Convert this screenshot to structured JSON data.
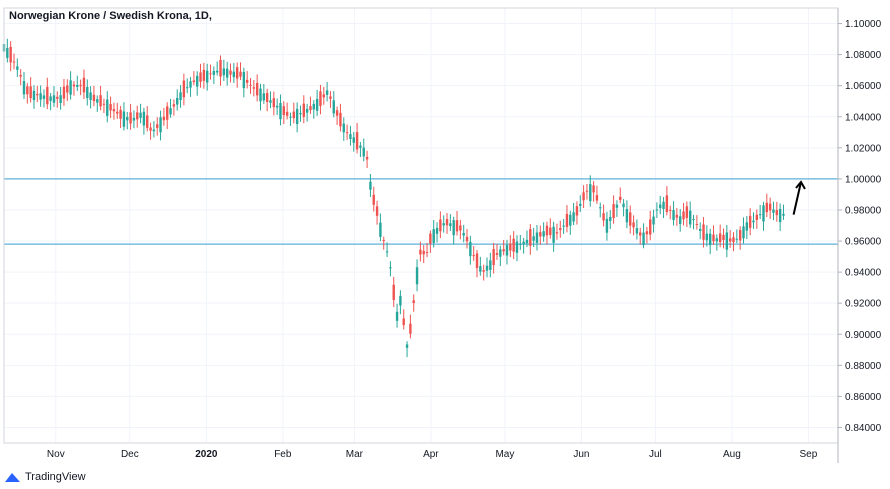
{
  "header": {
    "title": "Norwegian Krone / Swedish Krona, 1D,"
  },
  "branding": {
    "name": "TradingView",
    "logo_icon": "tradingview-logo-icon"
  },
  "colors": {
    "up": "#26a69a",
    "down": "#ef5350",
    "hline": "#5fb2d9",
    "grid": "#f0f3fa",
    "arrow": "#000000"
  },
  "chart_data": {
    "type": "candlestick",
    "title": "Norwegian Krone / Swedish Krona, 1D,",
    "ylim": [
      0.83,
      1.11
    ],
    "y_ticks": [
      "0.84000",
      "0.86000",
      "0.88000",
      "0.90000",
      "0.92000",
      "0.94000",
      "0.96000",
      "0.98000",
      "1.00000",
      "1.02000",
      "1.04000",
      "1.06000",
      "1.08000",
      "1.10000"
    ],
    "x_ticks": [
      {
        "label": "Nov",
        "x": 21
      },
      {
        "label": "Dec",
        "x": 51
      },
      {
        "label": "2020",
        "x": 82,
        "bold": true
      },
      {
        "label": "Feb",
        "x": 113
      },
      {
        "label": "Mar",
        "x": 142
      },
      {
        "label": "Apr",
        "x": 173
      },
      {
        "label": "May",
        "x": 203
      },
      {
        "label": "Jun",
        "x": 234
      },
      {
        "label": "Jul",
        "x": 264
      },
      {
        "label": "Aug",
        "x": 295
      },
      {
        "label": "Sep",
        "x": 326
      }
    ],
    "x_domain": [
      0,
      338
    ],
    "series": [
      {
        "x": 0,
        "y": 1.085
      },
      {
        "x": 3,
        "y": 1.078
      },
      {
        "x": 6,
        "y": 1.07
      },
      {
        "x": 8,
        "y": 1.06
      },
      {
        "x": 10,
        "y": 1.055
      },
      {
        "x": 14,
        "y": 1.054
      },
      {
        "x": 18,
        "y": 1.052
      },
      {
        "x": 23,
        "y": 1.052
      },
      {
        "x": 27,
        "y": 1.06
      },
      {
        "x": 32,
        "y": 1.06
      },
      {
        "x": 36,
        "y": 1.052
      },
      {
        "x": 42,
        "y": 1.047
      },
      {
        "x": 48,
        "y": 1.04
      },
      {
        "x": 52,
        "y": 1.038
      },
      {
        "x": 56,
        "y": 1.042
      },
      {
        "x": 60,
        "y": 1.03
      },
      {
        "x": 64,
        "y": 1.037
      },
      {
        "x": 68,
        "y": 1.045
      },
      {
        "x": 72,
        "y": 1.055
      },
      {
        "x": 76,
        "y": 1.062
      },
      {
        "x": 80,
        "y": 1.065
      },
      {
        "x": 84,
        "y": 1.068
      },
      {
        "x": 88,
        "y": 1.07
      },
      {
        "x": 92,
        "y": 1.068
      },
      {
        "x": 96,
        "y": 1.067
      },
      {
        "x": 100,
        "y": 1.06
      },
      {
        "x": 104,
        "y": 1.055
      },
      {
        "x": 108,
        "y": 1.05
      },
      {
        "x": 112,
        "y": 1.045
      },
      {
        "x": 116,
        "y": 1.04
      },
      {
        "x": 120,
        "y": 1.042
      },
      {
        "x": 124,
        "y": 1.045
      },
      {
        "x": 128,
        "y": 1.05
      },
      {
        "x": 131,
        "y": 1.056
      },
      {
        "x": 133,
        "y": 1.05
      },
      {
        "x": 136,
        "y": 1.038
      },
      {
        "x": 139,
        "y": 1.03
      },
      {
        "x": 142,
        "y": 1.025
      },
      {
        "x": 145,
        "y": 1.02
      },
      {
        "x": 147,
        "y": 1.015
      },
      {
        "x": 149,
        "y": 0.99
      },
      {
        "x": 151,
        "y": 0.98
      },
      {
        "x": 153,
        "y": 0.965
      },
      {
        "x": 155,
        "y": 0.955
      },
      {
        "x": 157,
        "y": 0.94
      },
      {
        "x": 159,
        "y": 0.91
      },
      {
        "x": 161,
        "y": 0.925
      },
      {
        "x": 163,
        "y": 0.89
      },
      {
        "x": 165,
        "y": 0.905
      },
      {
        "x": 167,
        "y": 0.935
      },
      {
        "x": 169,
        "y": 0.955
      },
      {
        "x": 171,
        "y": 0.95
      },
      {
        "x": 173,
        "y": 0.962
      },
      {
        "x": 176,
        "y": 0.968
      },
      {
        "x": 179,
        "y": 0.972
      },
      {
        "x": 182,
        "y": 0.97
      },
      {
        "x": 185,
        "y": 0.968
      },
      {
        "x": 188,
        "y": 0.96
      },
      {
        "x": 191,
        "y": 0.948
      },
      {
        "x": 194,
        "y": 0.94
      },
      {
        "x": 197,
        "y": 0.945
      },
      {
        "x": 200,
        "y": 0.952
      },
      {
        "x": 204,
        "y": 0.955
      },
      {
        "x": 208,
        "y": 0.957
      },
      {
        "x": 212,
        "y": 0.96
      },
      {
        "x": 216,
        "y": 0.963
      },
      {
        "x": 220,
        "y": 0.966
      },
      {
        "x": 224,
        "y": 0.965
      },
      {
        "x": 228,
        "y": 0.972
      },
      {
        "x": 232,
        "y": 0.978
      },
      {
        "x": 236,
        "y": 0.992
      },
      {
        "x": 239,
        "y": 0.993
      },
      {
        "x": 242,
        "y": 0.98
      },
      {
        "x": 244,
        "y": 0.97
      },
      {
        "x": 247,
        "y": 0.978
      },
      {
        "x": 250,
        "y": 0.988
      },
      {
        "x": 253,
        "y": 0.975
      },
      {
        "x": 256,
        "y": 0.968
      },
      {
        "x": 259,
        "y": 0.962
      },
      {
        "x": 262,
        "y": 0.968
      },
      {
        "x": 265,
        "y": 0.982
      },
      {
        "x": 268,
        "y": 0.984
      },
      {
        "x": 271,
        "y": 0.978
      },
      {
        "x": 274,
        "y": 0.974
      },
      {
        "x": 277,
        "y": 0.978
      },
      {
        "x": 280,
        "y": 0.973
      },
      {
        "x": 283,
        "y": 0.965
      },
      {
        "x": 286,
        "y": 0.962
      },
      {
        "x": 289,
        "y": 0.961
      },
      {
        "x": 292,
        "y": 0.962
      },
      {
        "x": 295,
        "y": 0.96
      },
      {
        "x": 298,
        "y": 0.962
      },
      {
        "x": 301,
        "y": 0.97
      },
      {
        "x": 304,
        "y": 0.973
      },
      {
        "x": 307,
        "y": 0.978
      },
      {
        "x": 310,
        "y": 0.982
      },
      {
        "x": 313,
        "y": 0.978
      },
      {
        "x": 316,
        "y": 0.977
      }
    ],
    "hlines": [
      1.0,
      0.958
    ],
    "annotation": {
      "type": "arrow",
      "from": {
        "x": 320,
        "y": 0.977
      },
      "to": {
        "x": 323,
        "y": 0.998
      }
    }
  }
}
